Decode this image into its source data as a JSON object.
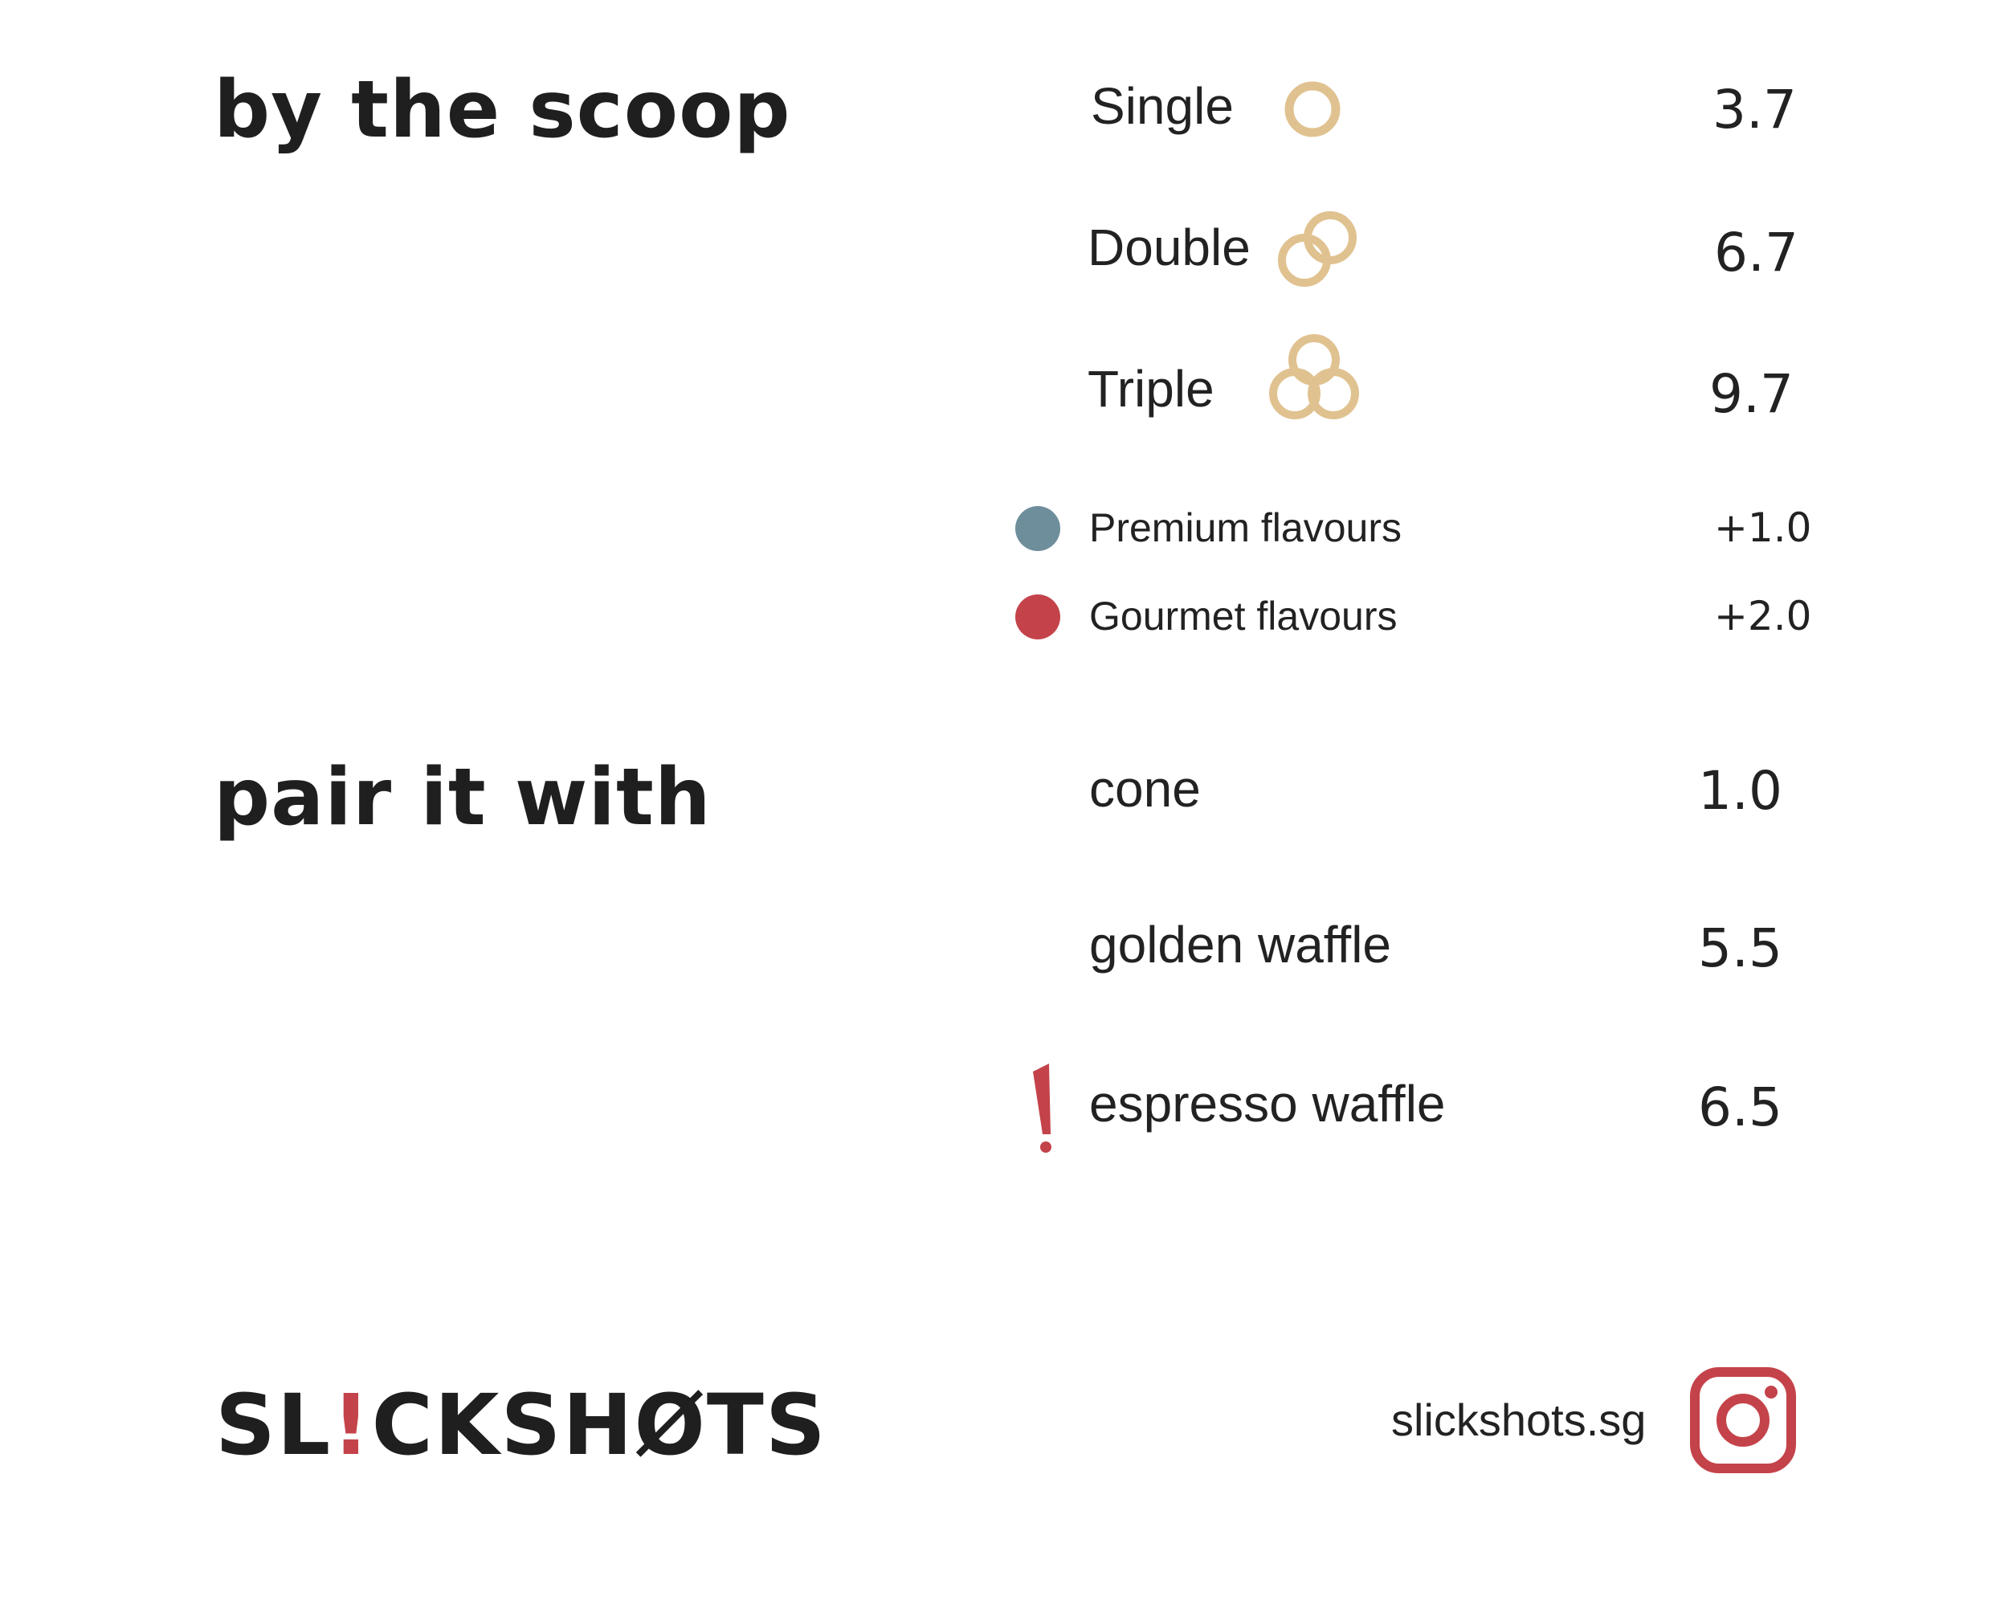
{
  "colors": {
    "scoop_icon": "#e0c290",
    "premium_dot": "#6f8e9b",
    "gourmet_dot": "#c4434a",
    "accent": "#c4434a",
    "text": "#222222"
  },
  "scoop_section": {
    "heading": "by the scoop",
    "items": [
      {
        "label": "Single",
        "price": "3.7",
        "icon": "single-scoop-icon"
      },
      {
        "label": "Double",
        "price": "6.7",
        "icon": "double-scoop-icon"
      },
      {
        "label": "Triple",
        "price": "9.7",
        "icon": "triple-scoop-icon"
      }
    ],
    "addons": [
      {
        "label": "Premium flavours",
        "price": "+1.0",
        "icon": "premium-dot-icon"
      },
      {
        "label": "Gourmet flavours",
        "price": "+2.0",
        "icon": "gourmet-dot-icon"
      }
    ]
  },
  "pair_section": {
    "heading": "pair it with",
    "items": [
      {
        "label": "cone",
        "price": "1.0"
      },
      {
        "label": "golden waffle",
        "price": "5.5"
      },
      {
        "label": "espresso waffle",
        "price": "6.5",
        "icon": "exclamation-icon"
      }
    ]
  },
  "footer": {
    "logo_part1": "SL",
    "logo_bang": "!",
    "logo_part2": "CKSHØTS",
    "handle": "slickshots.sg",
    "social_icon": "instagram-icon"
  }
}
